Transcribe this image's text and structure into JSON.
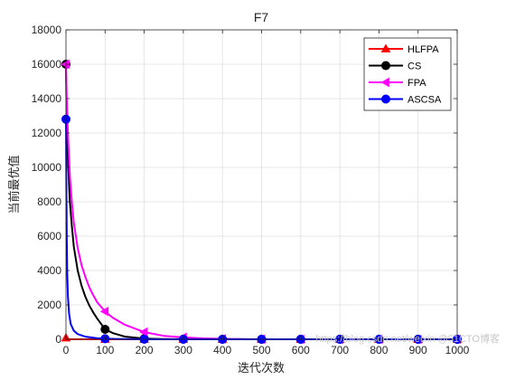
{
  "chart_data": {
    "type": "line",
    "title": "F7",
    "xlabel": "迭代次数",
    "ylabel": "当前最优值",
    "xlim": [
      0,
      1000
    ],
    "ylim": [
      0,
      18000
    ],
    "xticks": [
      0,
      100,
      200,
      300,
      400,
      500,
      600,
      700,
      800,
      900,
      1000
    ],
    "yticks": [
      0,
      2000,
      4000,
      6000,
      8000,
      10000,
      12000,
      14000,
      16000,
      18000
    ],
    "grid": true,
    "legend_position": "top-right",
    "series": [
      {
        "name": "HLFPA",
        "color": "#ff0000",
        "marker": "triangle-up",
        "x": [
          0,
          5,
          10,
          50,
          100,
          200,
          300,
          400,
          500,
          600,
          700,
          800,
          900,
          1000
        ],
        "y": [
          80,
          30,
          5,
          0,
          0,
          0,
          0,
          0,
          0,
          0,
          0,
          0,
          0,
          0
        ],
        "marker_x": [
          0,
          100,
          200,
          300,
          400,
          500,
          600,
          700,
          800,
          900,
          1000
        ],
        "marker_y": [
          80,
          0,
          0,
          0,
          0,
          0,
          0,
          0,
          0,
          0,
          0
        ]
      },
      {
        "name": "CS",
        "color": "#000000",
        "marker": "circle",
        "x": [
          0,
          2,
          5,
          10,
          15,
          20,
          30,
          40,
          50,
          60,
          70,
          80,
          100,
          120,
          150,
          200,
          250,
          300,
          400,
          500,
          600,
          700,
          800,
          900,
          1000
        ],
        "y": [
          16000,
          12500,
          10500,
          8000,
          6600,
          5400,
          4000,
          3100,
          2450,
          1950,
          1550,
          1200,
          580,
          360,
          160,
          40,
          15,
          5,
          0,
          0,
          0,
          0,
          0,
          0,
          0
        ],
        "marker_x": [
          0,
          100,
          200,
          300,
          400,
          500,
          600,
          700,
          800,
          900,
          1000
        ],
        "marker_y": [
          16000,
          580,
          40,
          5,
          0,
          0,
          0,
          0,
          0,
          0,
          0
        ]
      },
      {
        "name": "FPA",
        "color": "#ff00ff",
        "marker": "triangle-left",
        "x": [
          0,
          2,
          5,
          10,
          15,
          20,
          30,
          40,
          50,
          60,
          70,
          80,
          100,
          120,
          150,
          200,
          250,
          300,
          350,
          400,
          500,
          600,
          700,
          800,
          900,
          1000
        ],
        "y": [
          16000,
          14000,
          12000,
          9500,
          8000,
          6800,
          5300,
          4300,
          3600,
          3000,
          2550,
          2150,
          1620,
          1250,
          850,
          420,
          200,
          110,
          50,
          25,
          0,
          0,
          0,
          0,
          0,
          0
        ],
        "marker_x": [
          0,
          100,
          200,
          300,
          400,
          500,
          600,
          700,
          800,
          900,
          1000
        ],
        "marker_y": [
          16000,
          1620,
          420,
          110,
          25,
          0,
          0,
          0,
          0,
          0,
          0
        ]
      },
      {
        "name": "ASCSA",
        "color": "#0000ff",
        "marker": "circle",
        "x": [
          0,
          1,
          2,
          3,
          5,
          8,
          12,
          20,
          30,
          50,
          80,
          100,
          150,
          200,
          300,
          400,
          500,
          600,
          700,
          800,
          900,
          1000
        ],
        "y": [
          12800,
          9000,
          6000,
          4000,
          2500,
          1500,
          900,
          500,
          300,
          150,
          60,
          30,
          10,
          0,
          0,
          0,
          0,
          0,
          0,
          0,
          0,
          0
        ],
        "marker_x": [
          0,
          100,
          200,
          300,
          400,
          500,
          600,
          700,
          800,
          900,
          1000
        ],
        "marker_y": [
          12800,
          30,
          0,
          0,
          0,
          0,
          0,
          0,
          0,
          0,
          0
        ]
      }
    ],
    "watermark": "https://blog.csdn.net/weixin @51CTO博客"
  }
}
